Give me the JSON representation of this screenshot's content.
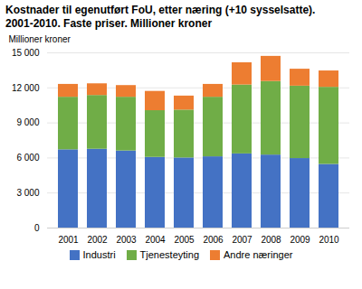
{
  "chart_data": {
    "type": "bar",
    "stacked": true,
    "title": "Kostnader til egenutført FoU, etter næring (+10 sysselsatte).",
    "subtitle": "2001-2010. Faste priser. Millioner kroner",
    "ylabel": "Millioner kroner",
    "categories": [
      "2001",
      "2002",
      "2003",
      "2004",
      "2005",
      "2006",
      "2007",
      "2008",
      "2009",
      "2010"
    ],
    "series": [
      {
        "name": "Industri",
        "color": "#4472c4",
        "values": [
          6700,
          6750,
          6600,
          6050,
          6000,
          6100,
          6350,
          6250,
          5950,
          5450
        ]
      },
      {
        "name": "Tjenesteyting",
        "color": "#70ad47",
        "values": [
          4500,
          4600,
          4600,
          4000,
          4100,
          5100,
          5900,
          6300,
          6200,
          6600
        ]
      },
      {
        "name": "Andre næringer",
        "color": "#ed7d31",
        "values": [
          1100,
          1000,
          1000,
          1650,
          1200,
          1100,
          1900,
          2150,
          1450,
          1400
        ]
      }
    ],
    "ylim": [
      0,
      15000
    ],
    "yticks": [
      0,
      {
        "value": 3000,
        "label": "3 000"
      },
      {
        "value": 6000,
        "label": "6 000"
      },
      {
        "value": 9000,
        "label": "9 000"
      },
      {
        "value": 12000,
        "label": "12 000"
      },
      {
        "value": 15000,
        "label": "15 000"
      }
    ],
    "grid": true,
    "legend": "bottom"
  }
}
